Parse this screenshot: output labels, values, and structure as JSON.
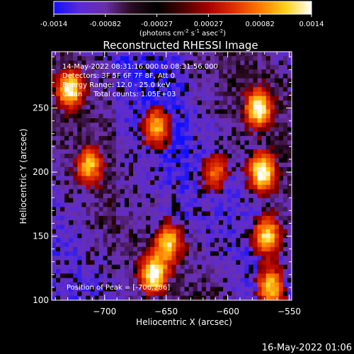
{
  "colors": {
    "background": "#000000",
    "foreground": "#ffffff",
    "colormap": [
      "#1010ff",
      "#5a2bd6",
      "#6a2fa8",
      "#2a0a20",
      "#000000",
      "#4a0000",
      "#a80000",
      "#e03000",
      "#ff7a00",
      "#ffd21a",
      "#ffffff"
    ]
  },
  "colorbar": {
    "range": [
      -0.0014,
      0.0014
    ],
    "ticks": [
      "-0.0014",
      "-0.00082",
      "-0.00027",
      "0.00027",
      "0.00082",
      "0.0014"
    ],
    "unit_parts": {
      "open": "(photons cm",
      "exp1": "-2",
      "mid1": " s",
      "exp2": "-1",
      "mid2": " asec",
      "exp3": "-2",
      "close": ")"
    }
  },
  "chart_data": {
    "type": "heatmap",
    "title": "Reconstructed RHESSI Image",
    "xlabel": "Heliocentric X (arcsec)",
    "ylabel": "Heliocentric Y (arcsec)",
    "xlim": [
      -743,
      -548
    ],
    "ylim": [
      100,
      294
    ],
    "x_ticks": [
      -700,
      -650,
      -600,
      -550
    ],
    "x_tick_labels": [
      "−700",
      "−650",
      "−600",
      "−550"
    ],
    "y_ticks": [
      100,
      150,
      200,
      250
    ],
    "y_tick_labels": [
      "100",
      "150",
      "200",
      "250"
    ],
    "grid": false,
    "bright_sources": [
      {
        "x": -575,
        "y": 250,
        "intensity": 1.0
      },
      {
        "x": -572,
        "y": 200,
        "intensity": 1.0
      },
      {
        "x": -568,
        "y": 150,
        "intensity": 0.85
      },
      {
        "x": -565,
        "y": 110,
        "intensity": 0.8
      },
      {
        "x": -660,
        "y": 120,
        "intensity": 1.0
      },
      {
        "x": -648,
        "y": 145,
        "intensity": 0.8
      },
      {
        "x": -728,
        "y": 265,
        "intensity": 0.95
      },
      {
        "x": -712,
        "y": 205,
        "intensity": 0.75
      },
      {
        "x": -658,
        "y": 235,
        "intensity": 0.75
      },
      {
        "x": -610,
        "y": 200,
        "intensity": 0.55
      }
    ],
    "annotations": [
      "14-May-2022 08:31:16.000 to 08:31:56.000",
      "Detectors: 3F 5F 6F 7F 8F, Att 0",
      "Energy Range: 12.0 - 25.0 keV",
      "Clean     Total counts: 1.05E+03",
      "Position of Peak = [-706,286]"
    ]
  },
  "footer": {
    "timestamp": "16-May-2022 01:06"
  }
}
